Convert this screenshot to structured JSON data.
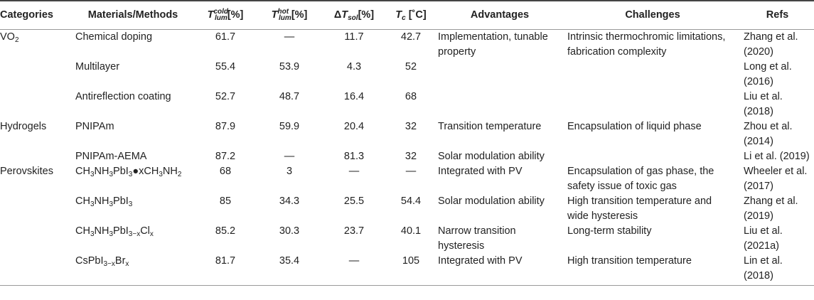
{
  "headers": {
    "categories": "Categories",
    "materials": "Materials/Methods",
    "t_cold": {
      "base": "T",
      "sup": "cold",
      "sub": "lum",
      "tail": "[%]"
    },
    "t_hot": {
      "base": "T",
      "sup": "hot",
      "sub": "lum",
      "tail": "[%]"
    },
    "delta_t": {
      "prefix": "Δ",
      "base": "T",
      "sub": "sol",
      "tail": "[%]"
    },
    "tc": {
      "base": "T",
      "sub": "c",
      "tail": " [˚C]"
    },
    "advantages": "Advantages",
    "challenges": "Challenges",
    "refs": "Refs"
  },
  "rows": [
    {
      "category": "VO",
      "category_sub": "2",
      "material": [
        {
          "t": "Chemical doping"
        }
      ],
      "t_cold": "61.7",
      "t_hot": "—",
      "delta_t": "11.7",
      "tc": "42.7",
      "advantages": [
        "Implementation, tunable",
        "property"
      ],
      "challenges": [
        "Intrinsic thermochromic limitations,",
        "fabrication complexity"
      ],
      "refs": [
        "Zhang et al.",
        "(2020)"
      ]
    },
    {
      "category": "",
      "category_sub": "",
      "material": [
        {
          "t": "Multilayer"
        }
      ],
      "t_cold": "55.4",
      "t_hot": "53.9",
      "delta_t": "4.3",
      "tc": "52",
      "advantages": [],
      "challenges": [],
      "refs": [
        "Long et al.",
        "(2016)"
      ]
    },
    {
      "category": "",
      "category_sub": "",
      "material": [
        {
          "t": "Antireflection coating"
        }
      ],
      "t_cold": "52.7",
      "t_hot": "48.7",
      "delta_t": "16.4",
      "tc": "68",
      "advantages": [],
      "challenges": [],
      "refs": [
        "Liu et al.",
        "(2018)"
      ]
    },
    {
      "category": "Hydrogels",
      "category_sub": "",
      "material": [
        {
          "t": "PNIPAm"
        }
      ],
      "t_cold": "87.9",
      "t_hot": "59.9",
      "delta_t": "20.4",
      "tc": "32",
      "advantages": [
        "Transition temperature"
      ],
      "challenges": [
        "Encapsulation of liquid phase"
      ],
      "refs": [
        "Zhou et al.",
        "(2014)"
      ]
    },
    {
      "category": "",
      "category_sub": "",
      "material": [
        {
          "t": "PNIPAm-AEMA"
        }
      ],
      "t_cold": "87.2",
      "t_hot": "—",
      "delta_t": "81.3",
      "tc": "32",
      "advantages": [
        "Solar modulation ability"
      ],
      "challenges": [],
      "refs": [
        "Li et al. (2019)"
      ]
    },
    {
      "category": "Perovskites",
      "category_sub": "",
      "material": [
        {
          "t": "CH"
        },
        {
          "s": "3"
        },
        {
          "t": "NH"
        },
        {
          "s": "3"
        },
        {
          "t": "PbI"
        },
        {
          "s": "3"
        },
        {
          "t": "●xCH"
        },
        {
          "s": "3"
        },
        {
          "t": "NH"
        },
        {
          "s": "2"
        }
      ],
      "t_cold": "68",
      "t_hot": "3",
      "delta_t": "—",
      "tc": "—",
      "advantages": [
        "Integrated with PV"
      ],
      "challenges": [
        "Encapsulation of gas phase, the",
        "safety issue of toxic gas"
      ],
      "refs": [
        "Wheeler et al.",
        "(2017)"
      ]
    },
    {
      "category": "",
      "category_sub": "",
      "material": [
        {
          "t": "CH"
        },
        {
          "s": "3"
        },
        {
          "t": "NH"
        },
        {
          "s": "3"
        },
        {
          "t": "PbI"
        },
        {
          "s": "3"
        }
      ],
      "t_cold": "85",
      "t_hot": "34.3",
      "delta_t": "25.5",
      "tc": "54.4",
      "advantages": [
        "Solar modulation ability"
      ],
      "challenges": [
        "High transition temperature and",
        "wide hysteresis"
      ],
      "refs": [
        "Zhang et al.",
        "(2019)"
      ]
    },
    {
      "category": "",
      "category_sub": "",
      "material": [
        {
          "t": "CH"
        },
        {
          "s": "3"
        },
        {
          "t": "NH"
        },
        {
          "s": "3"
        },
        {
          "t": "PbI"
        },
        {
          "s": "3−x"
        },
        {
          "t": "Cl"
        },
        {
          "s": "x"
        }
      ],
      "t_cold": "85.2",
      "t_hot": "30.3",
      "delta_t": "23.7",
      "tc": "40.1",
      "advantages": [
        "Narrow transition",
        "hysteresis"
      ],
      "challenges": [
        "Long-term stability"
      ],
      "refs": [
        "Liu et al.",
        "(2021a)"
      ]
    },
    {
      "category": "",
      "category_sub": "",
      "material": [
        {
          "t": "CsPbI"
        },
        {
          "s": "3−x"
        },
        {
          "t": "Br"
        },
        {
          "s": "x"
        }
      ],
      "t_cold": "81.7",
      "t_hot": "35.4",
      "delta_t": "—",
      "tc": "105",
      "advantages": [
        "Integrated with PV"
      ],
      "challenges": [
        "High transition temperature"
      ],
      "refs": [
        "Lin et al.",
        "(2018)"
      ]
    }
  ]
}
